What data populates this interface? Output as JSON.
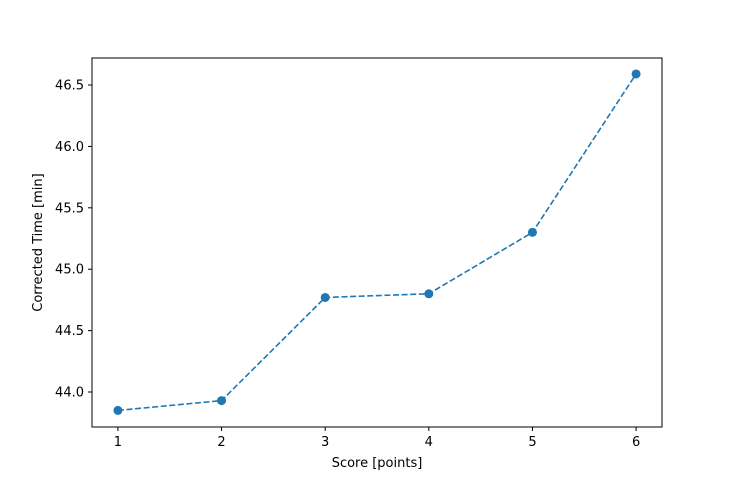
{
  "chart_data": {
    "type": "line",
    "title": "",
    "xlabel": "Score [points]",
    "ylabel": "Corrected Time [min]",
    "x": [
      1,
      2,
      3,
      4,
      5,
      6
    ],
    "series": [
      {
        "values": [
          43.85,
          43.93,
          44.77,
          44.8,
          45.3,
          46.59
        ],
        "color": "#1f77b4",
        "linestyle": "dashed",
        "marker": "circle"
      }
    ],
    "xlim": [
      0.75,
      6.25
    ],
    "ylim": [
      43.715,
      46.72
    ],
    "xticks": [
      "1",
      "2",
      "3",
      "4",
      "5",
      "6"
    ],
    "yticks": [
      "44.0",
      "44.5",
      "45.0",
      "45.5",
      "46.0",
      "46.5"
    ],
    "grid": false,
    "legend": "none"
  }
}
